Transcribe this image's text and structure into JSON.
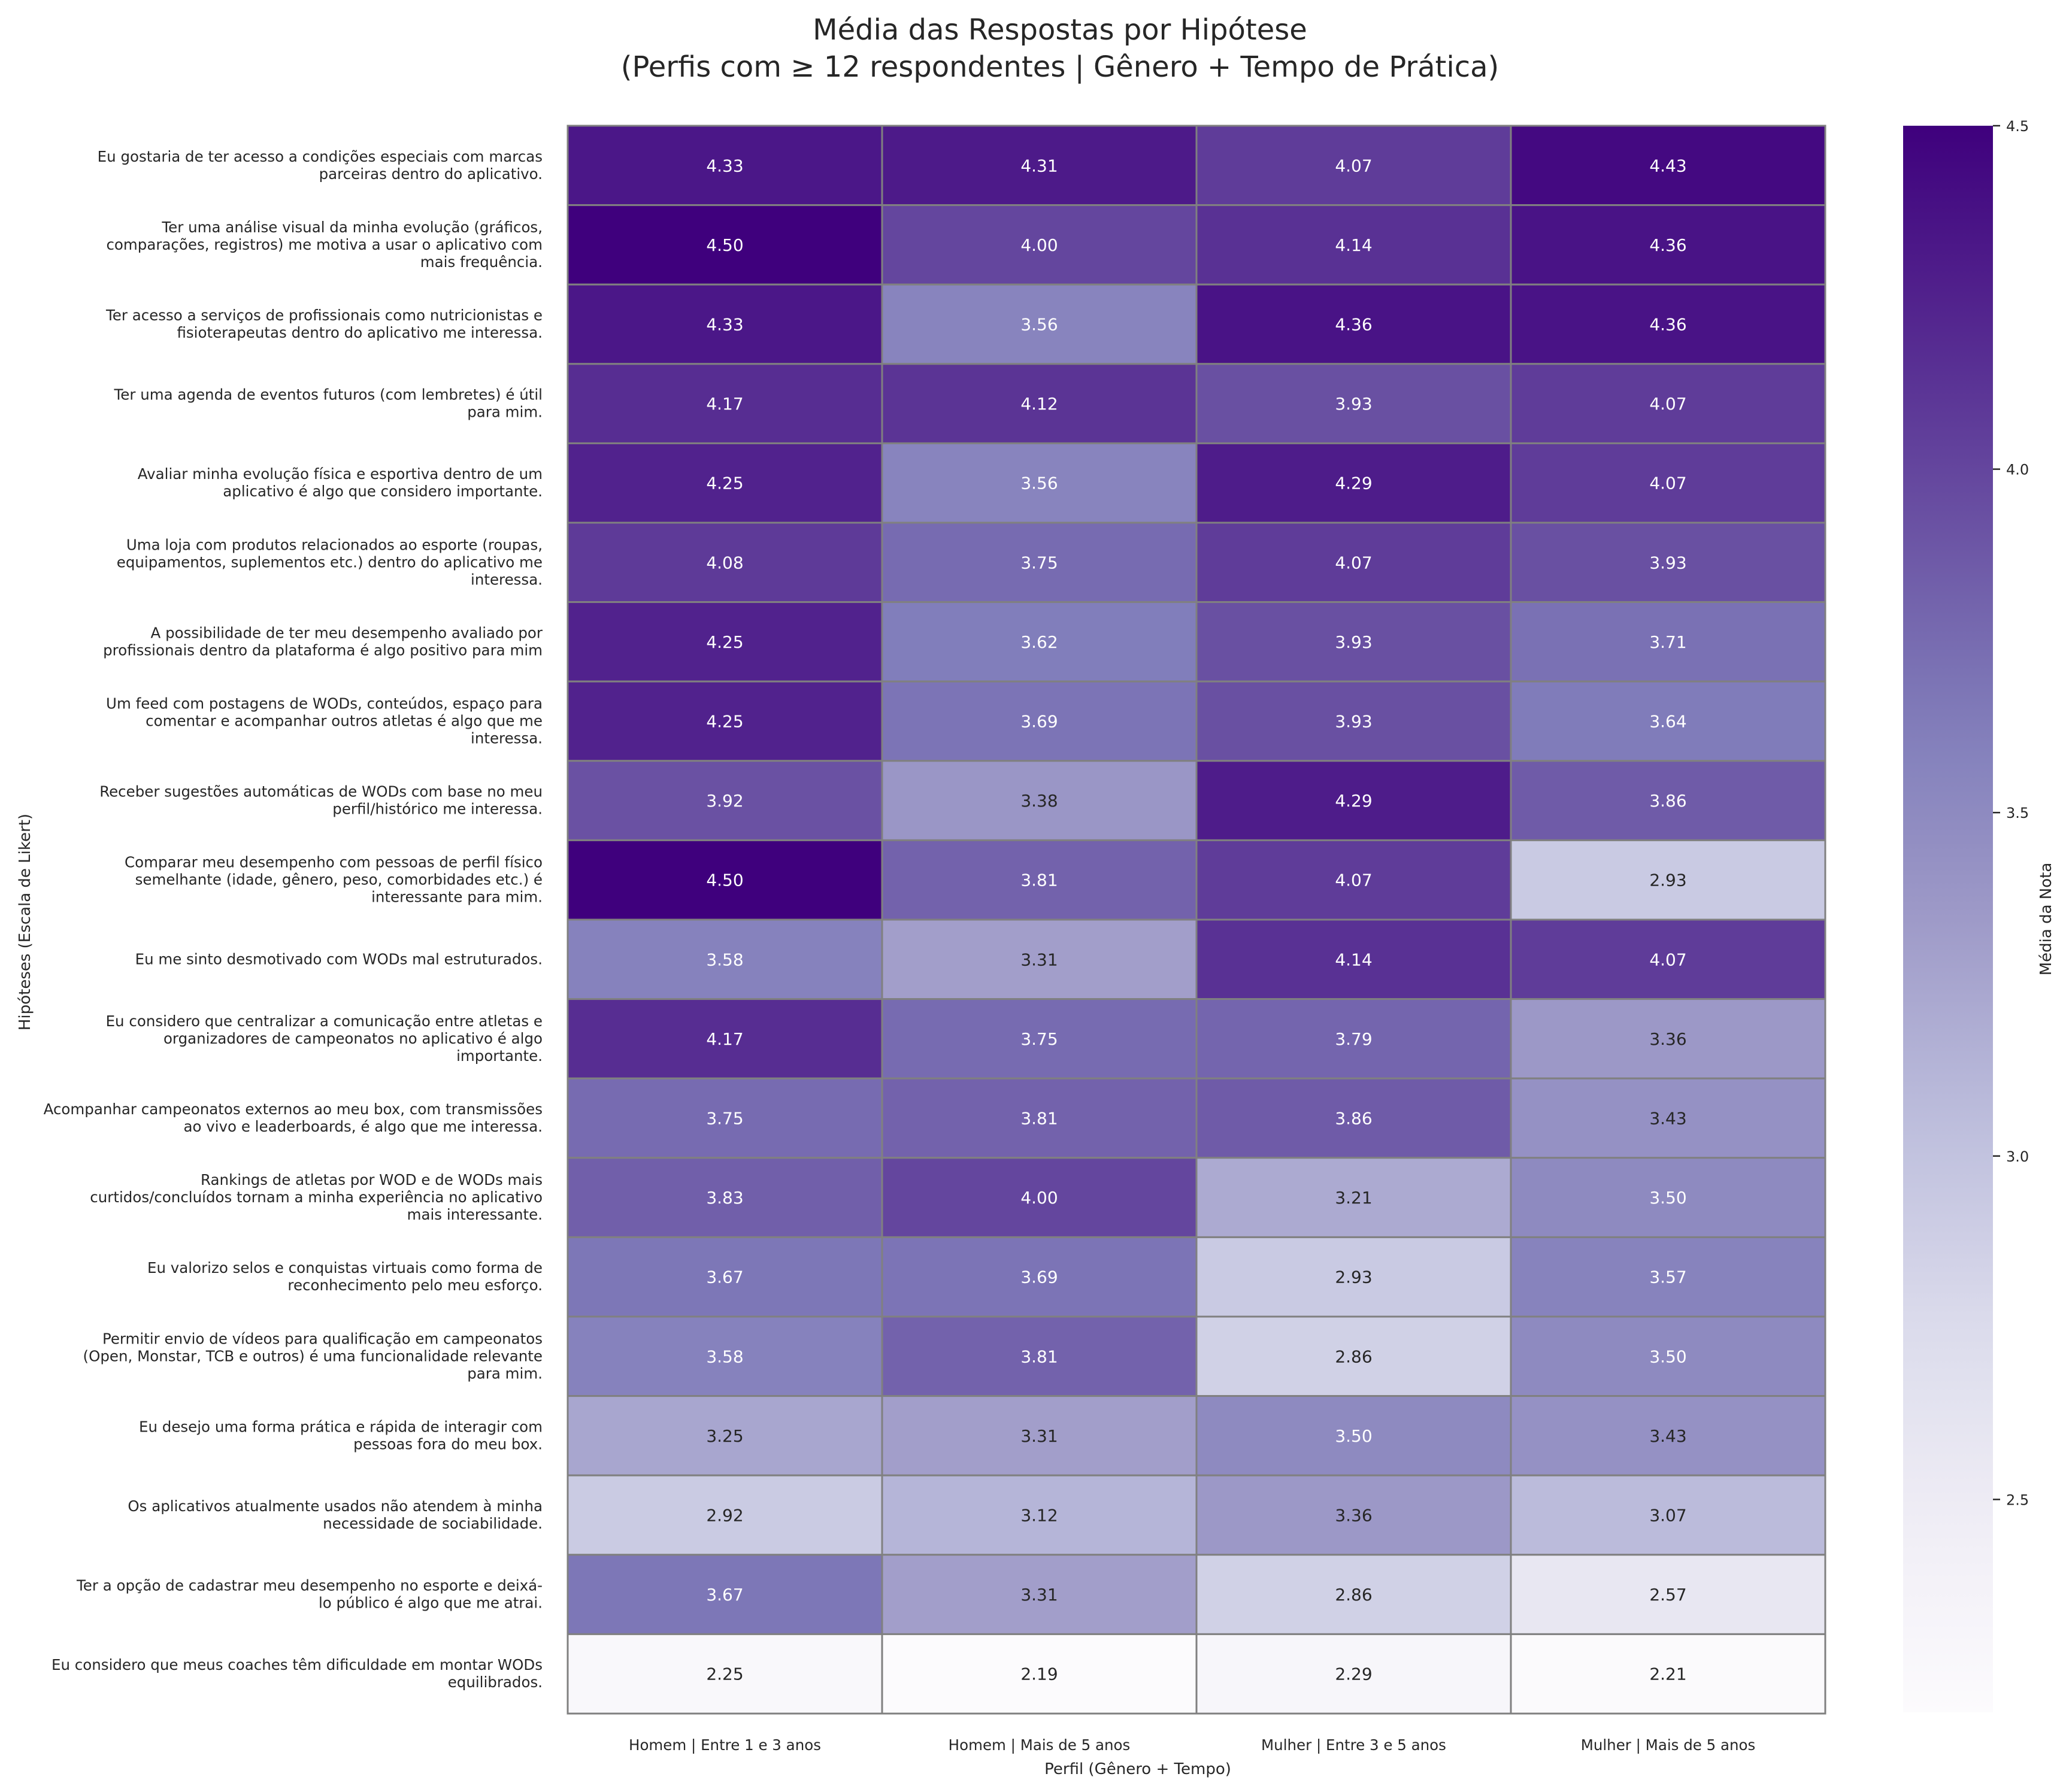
{
  "chart_data": {
    "type": "heatmap",
    "title": "Média das Respostas por Hipótese",
    "subtitle": "(Perfis com ≥ 12 respondentes | Gênero + Tempo de Prática)",
    "xlabel": "Perfil (Gênero + Tempo)",
    "ylabel": "Hipóteses (Escala de Likert)",
    "colorbar_label": "Média da Nota",
    "colormap": "Purples",
    "color_range": [
      2.19,
      4.5
    ],
    "colorbar_ticks": [
      "2.5",
      "3.0",
      "3.5",
      "4.0",
      "4.5"
    ],
    "columns": [
      "Homem | Entre 1 e 3 anos",
      "Homem | Mais de 5 anos",
      "Mulher | Entre 3 e 5 anos",
      "Mulher | Mais de 5 anos"
    ],
    "rows": [
      {
        "label": [
          "Eu gostaria de ter acesso a condições especiais com marcas",
          "parceiras dentro do aplicativo."
        ],
        "values": [
          4.33,
          4.31,
          4.07,
          4.43
        ]
      },
      {
        "label": [
          "Ter uma análise visual da minha evolução (gráficos,",
          "comparações, registros) me motiva a usar o aplicativo com",
          "mais frequência."
        ],
        "values": [
          4.5,
          4.0,
          4.14,
          4.36
        ]
      },
      {
        "label": [
          "Ter acesso a serviços de profissionais como nutricionistas e",
          "fisioterapeutas dentro do aplicativo me interessa."
        ],
        "values": [
          4.33,
          3.56,
          4.36,
          4.36
        ]
      },
      {
        "label": [
          "Ter uma agenda de eventos futuros (com lembretes) é útil",
          "para mim."
        ],
        "values": [
          4.17,
          4.12,
          3.93,
          4.07
        ]
      },
      {
        "label": [
          "Avaliar minha evolução física e esportiva dentro de um",
          "aplicativo é algo que considero importante."
        ],
        "values": [
          4.25,
          3.56,
          4.29,
          4.07
        ]
      },
      {
        "label": [
          "Uma loja com produtos relacionados ao esporte (roupas,",
          "equipamentos, suplementos etc.) dentro do aplicativo me",
          "interessa."
        ],
        "values": [
          4.08,
          3.75,
          4.07,
          3.93
        ]
      },
      {
        "label": [
          "A possibilidade de ter meu desempenho avaliado por",
          "profissionais dentro da plataforma é algo positivo para mim"
        ],
        "values": [
          4.25,
          3.62,
          3.93,
          3.71
        ]
      },
      {
        "label": [
          "Um feed com postagens de WODs, conteúdos, espaço para",
          "comentar e acompanhar outros atletas é algo que me",
          "interessa."
        ],
        "values": [
          4.25,
          3.69,
          3.93,
          3.64
        ]
      },
      {
        "label": [
          "Receber sugestões automáticas de WODs com base no meu",
          "perfil/histórico me interessa."
        ],
        "values": [
          3.92,
          3.38,
          4.29,
          3.86
        ]
      },
      {
        "label": [
          "Comparar meu desempenho com pessoas de perfil físico",
          "semelhante (idade, gênero, peso, comorbidades etc.) é",
          "interessante para mim."
        ],
        "values": [
          4.5,
          3.81,
          4.07,
          2.93
        ]
      },
      {
        "label": [
          "Eu me sinto desmotivado com WODs mal estruturados."
        ],
        "values": [
          3.58,
          3.31,
          4.14,
          4.07
        ]
      },
      {
        "label": [
          "Eu considero que centralizar a comunicação entre atletas e",
          "organizadores de campeonatos no aplicativo é algo",
          "importante."
        ],
        "values": [
          4.17,
          3.75,
          3.79,
          3.36
        ]
      },
      {
        "label": [
          "Acompanhar campeonatos externos ao meu box, com transmissões",
          "ao vivo e leaderboards, é algo que me interessa."
        ],
        "values": [
          3.75,
          3.81,
          3.86,
          3.43
        ]
      },
      {
        "label": [
          "Rankings de atletas por WOD e de WODs mais",
          "curtidos/concluídos tornam a minha experiência no aplicativo",
          "mais interessante."
        ],
        "values": [
          3.83,
          4.0,
          3.21,
          3.5
        ]
      },
      {
        "label": [
          "Eu valorizo selos e conquistas virtuais como forma de",
          "reconhecimento pelo meu esforço."
        ],
        "values": [
          3.67,
          3.69,
          2.93,
          3.57
        ]
      },
      {
        "label": [
          "Permitir envio de vídeos para qualificação em campeonatos",
          "(Open, Monstar, TCB e outros) é uma funcionalidade relevante",
          "para mim."
        ],
        "values": [
          3.58,
          3.81,
          2.86,
          3.5
        ]
      },
      {
        "label": [
          "Eu desejo uma forma prática e rápida de interagir com",
          "pessoas fora do meu box."
        ],
        "values": [
          3.25,
          3.31,
          3.5,
          3.43
        ]
      },
      {
        "label": [
          "Os aplicativos atualmente usados não atendem à minha",
          "necessidade de sociabilidade."
        ],
        "values": [
          2.92,
          3.12,
          3.36,
          3.07
        ]
      },
      {
        "label": [
          "Ter a opção de cadastrar meu desempenho no esporte e deixá-",
          "lo público é algo que me atrai."
        ],
        "values": [
          3.67,
          3.31,
          2.86,
          2.57
        ]
      },
      {
        "label": [
          "Eu considero que meus coaches têm dificuldade em montar WODs",
          "equilibrados."
        ],
        "values": [
          2.25,
          2.19,
          2.29,
          2.21
        ]
      }
    ]
  }
}
